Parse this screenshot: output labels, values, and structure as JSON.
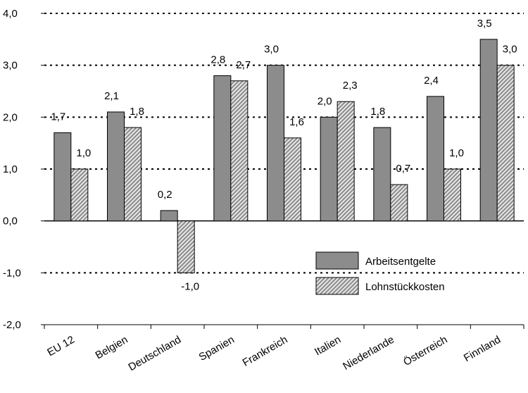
{
  "chart_data": {
    "type": "bar",
    "title": "",
    "xlabel": "",
    "ylabel": "",
    "ylim": [
      -2.0,
      4.0
    ],
    "yticks": [
      -2.0,
      -1.0,
      0.0,
      1.0,
      2.0,
      3.0,
      4.0
    ],
    "ytick_labels": [
      "-2,0",
      "-1,0",
      "0,0",
      "1,0",
      "2,0",
      "3,0",
      "4,0"
    ],
    "grid": "horizontal dotted lines",
    "legend_position": "bottom-right",
    "categories": [
      "EU 12",
      "Belgien",
      "Deutschland",
      "Spanien",
      "Frankreich",
      "Italien",
      "Niederlande",
      "Österreich",
      "Finnland"
    ],
    "series": [
      {
        "name": "Arbeitsentgelte",
        "color": "#8c8c8c",
        "pattern": "solid",
        "values": [
          1.7,
          2.1,
          0.2,
          2.8,
          3.0,
          2.0,
          1.8,
          2.4,
          3.5
        ],
        "labels": [
          "1,7",
          "2,1",
          "0,2",
          "2,8",
          "3,0",
          "2,0",
          "1,8",
          "2,4",
          "3,5"
        ]
      },
      {
        "name": "Lohnstückkosten",
        "color": "#b0b0b0",
        "pattern": "diagonal-hatch",
        "values": [
          1.0,
          1.8,
          -1.0,
          2.7,
          1.6,
          2.3,
          0.7,
          1.0,
          3.0
        ],
        "labels": [
          "1,0",
          "1,8",
          "-1,0",
          "2,7",
          "1,6",
          "2,3",
          "0,7",
          "1,0",
          "3,0"
        ]
      }
    ]
  }
}
